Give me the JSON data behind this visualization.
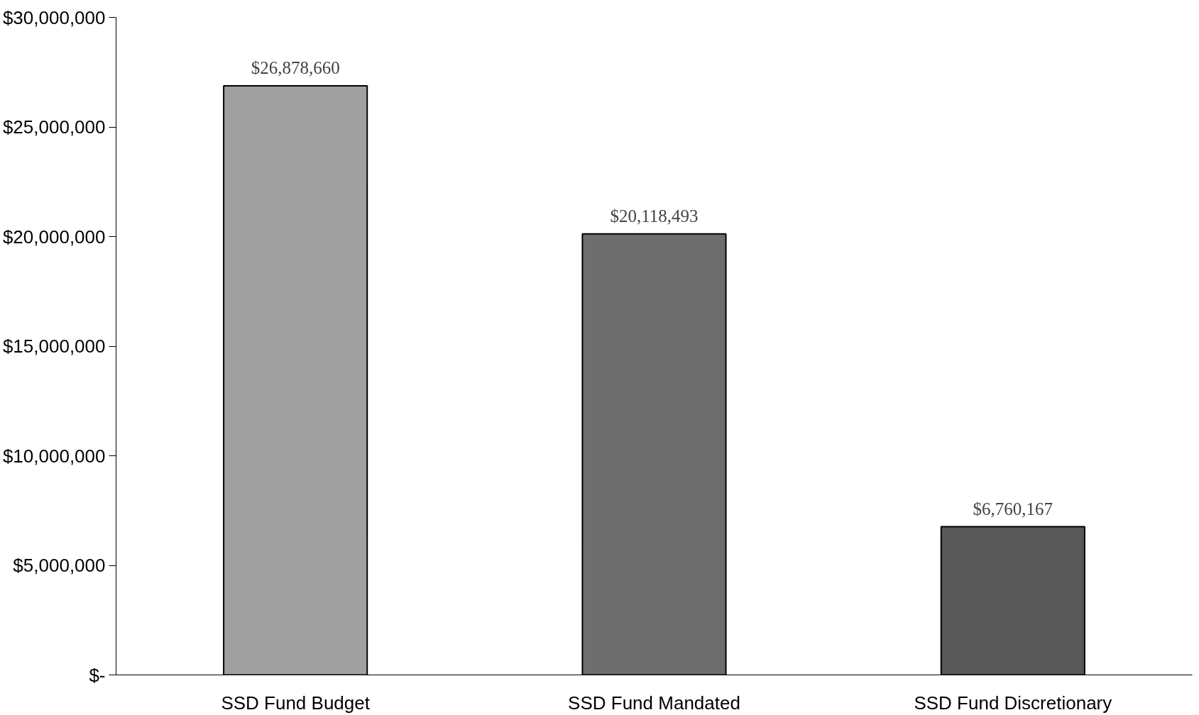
{
  "chart_data": {
    "type": "bar",
    "categories": [
      "SSD Fund Budget",
      "SSD Fund Mandated",
      "SSD Fund Discretionary"
    ],
    "values": [
      26878660,
      20118493,
      6760167
    ],
    "colors": [
      "#a0a0a0",
      "#6e6e6e",
      "#585858"
    ],
    "ylim": [
      0,
      30000000
    ],
    "yticks": [
      {
        "value": 0,
        "label": "$-"
      },
      {
        "value": 5000000,
        "label": "$5,000,000"
      },
      {
        "value": 10000000,
        "label": "$10,000,000"
      },
      {
        "value": 15000000,
        "label": "$15,000,000"
      },
      {
        "value": 20000000,
        "label": "$20,000,000"
      },
      {
        "value": 25000000,
        "label": "$25,000,000"
      },
      {
        "value": 30000000,
        "label": "$30,000,000"
      }
    ],
    "value_labels": [
      "$26,878,660",
      "$20,118,493",
      "$6,760,167"
    ],
    "grid": false
  }
}
